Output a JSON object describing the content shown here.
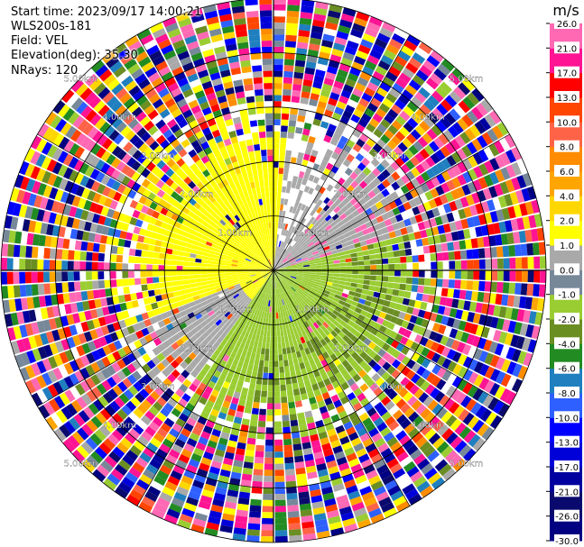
{
  "header": {
    "start_time": "Start time: 2023/09/17 14:00:21",
    "instrument": "WLS200s-181",
    "field": "Field: VEL",
    "elevation": "Elevation(deg): 35.30",
    "nrays": "NRays: 120"
  },
  "colorbar": {
    "unit": "m/s",
    "colors": [
      "#000080",
      "#0a0a6e",
      "#0000a0",
      "#0000d8",
      "#0000ff",
      "#2e5fff",
      "#1f7fbf",
      "#228b22",
      "#6b8e23",
      "#9acd32",
      "#778899",
      "#a9a9a9",
      "#ffff00",
      "#ffd700",
      "#ffa500",
      "#ff8c00",
      "#ff6347",
      "#ff4500",
      "#ff0000",
      "#ff1493",
      "#ff69b4"
    ],
    "ticks": [
      "-30.0",
      "-26.0",
      "-21.0",
      "-17.0",
      "-13.0",
      "-10.0",
      "-8.0",
      "-6.0",
      "-4.0",
      "-2.0",
      "-1.0",
      "0.0",
      "1.0",
      "2.0",
      "4.0",
      "6.0",
      "8.0",
      "10.0",
      "13.0",
      "17.0",
      "21.0",
      "26.0"
    ]
  },
  "chart_data": {
    "type": "heatmap",
    "title": "",
    "field": "VEL",
    "units": "m/s",
    "colorbar_range": [
      -30.0,
      30.0
    ],
    "nrays": 120,
    "elevation_deg": 35.3,
    "range_rings": [
      {
        "label": "1.00km"
      },
      {
        "label": "2.00km"
      },
      {
        "label": "3.00km"
      },
      {
        "label": "4.00km"
      },
      {
        "label": "5.00km"
      }
    ],
    "description_of_field": "Near-range region shows positive velocities (yellow, 1-2 m/s) to the northwest/west, negative velocities (olive green, -2 to -4 m/s) to the southeast/east, grey near-zero values to the south and northeast; outer ranges are noise with random colors."
  }
}
